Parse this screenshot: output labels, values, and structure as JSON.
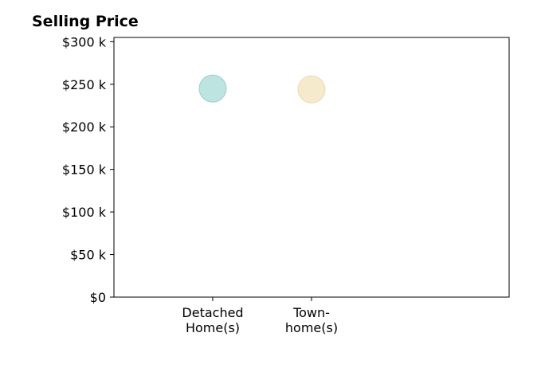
{
  "chart_data": {
    "type": "scatter",
    "title": "Selling Price",
    "xlabel": "",
    "ylabel": "",
    "categories": [
      [
        "Detached",
        "Home(s)"
      ],
      [
        "Town-",
        "home(s)"
      ]
    ],
    "values": [
      245000,
      244000
    ],
    "point_colors": [
      "#b2dfdb",
      "#f5e6c4"
    ],
    "point_edge_colors": [
      "#9ccfca",
      "#ecd9ae"
    ],
    "ylim": [
      0,
      305000
    ],
    "yticks": [
      0,
      50000,
      100000,
      150000,
      200000,
      250000,
      300000
    ],
    "ytick_labels": [
      "$0",
      "$50 k",
      "$100 k",
      "$150 k",
      "$200 k",
      "$250 k",
      "$300 k"
    ],
    "grid": false,
    "legend": "none"
  }
}
